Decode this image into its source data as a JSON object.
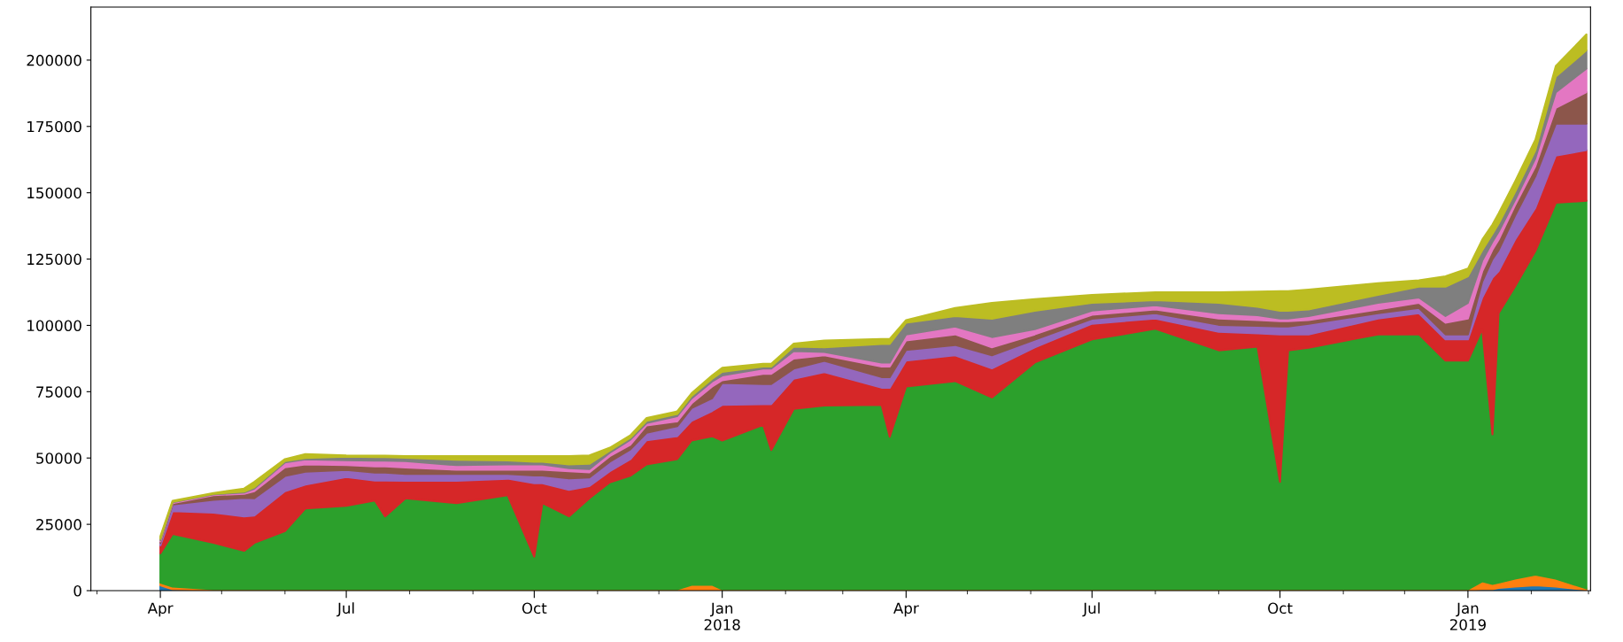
{
  "chart_data": {
    "type": "area",
    "stacked": true,
    "x": [
      "2017-04-01",
      "2017-04-07",
      "2017-04-27",
      "2017-05-12",
      "2017-05-17",
      "2017-06-01",
      "2017-06-11",
      "2017-07-01",
      "2017-07-15",
      "2017-07-20",
      "2017-07-30",
      "2017-08-24",
      "2017-09-18",
      "2017-10-01",
      "2017-10-05",
      "2017-10-18",
      "2017-10-28",
      "2017-11-07",
      "2017-11-17",
      "2017-11-25",
      "2017-12-10",
      "2017-12-17",
      "2017-12-27",
      "2018-01-01",
      "2018-01-21",
      "2018-01-25",
      "2018-02-05",
      "2018-02-20",
      "2018-03-20",
      "2018-03-24",
      "2018-04-01",
      "2018-04-25",
      "2018-05-13",
      "2018-06-03",
      "2018-07-01",
      "2018-08-01",
      "2018-09-01",
      "2018-09-20",
      "2018-10-01",
      "2018-10-05",
      "2018-10-15",
      "2018-11-18",
      "2018-12-08",
      "2018-12-21",
      "2019-01-01",
      "2019-01-08",
      "2019-01-13",
      "2019-01-16",
      "2019-01-24",
      "2019-02-03",
      "2019-02-13",
      "2019-02-28"
    ],
    "series": [
      {
        "color": "#1f77b4",
        "values": [
          2000,
          500,
          200,
          200,
          200,
          200,
          200,
          200,
          200,
          200,
          200,
          200,
          200,
          200,
          200,
          200,
          200,
          200,
          200,
          200,
          200,
          200,
          200,
          200,
          200,
          200,
          200,
          200,
          200,
          200,
          200,
          200,
          200,
          200,
          200,
          200,
          200,
          200,
          200,
          200,
          200,
          200,
          200,
          200,
          200,
          500,
          500,
          1000,
          1500,
          2000,
          1500,
          300
        ]
      },
      {
        "color": "#ff7f0e",
        "values": [
          1000,
          1000,
          300,
          300,
          300,
          300,
          300,
          300,
          300,
          300,
          300,
          300,
          300,
          300,
          300,
          300,
          300,
          300,
          300,
          300,
          300,
          2000,
          2000,
          300,
          300,
          300,
          300,
          300,
          300,
          300,
          300,
          300,
          300,
          300,
          300,
          300,
          300,
          300,
          300,
          300,
          300,
          300,
          300,
          300,
          300,
          3000,
          2000,
          2000,
          3000,
          4000,
          3000,
          500
        ]
      },
      {
        "color": "#2ca02c",
        "values": [
          11000,
          19900,
          17500,
          14500,
          17500,
          21900,
          30500,
          31500,
          33500,
          27500,
          34300,
          32500,
          35500,
          12300,
          32500,
          27500,
          34300,
          40300,
          42800,
          47100,
          49100,
          54400,
          56000,
          56100,
          62000,
          52500,
          68000,
          69300,
          69500,
          57500,
          76500,
          78500,
          72300,
          85500,
          94200,
          98200,
          90100,
          91500,
          40500,
          90100,
          91100,
          96100,
          96100,
          86200,
          86200,
          95200,
          56400,
          101600,
          110100,
          122000,
          141700,
          146200
        ]
      },
      {
        "color": "#d62728",
        "values": [
          3000,
          8600,
          11400,
          13000,
          10300,
          15100,
          9000,
          10800,
          7500,
          13500,
          6600,
          8400,
          6200,
          27700,
          7500,
          10000,
          4600,
          4200,
          6200,
          9100,
          8600,
          7400,
          9500,
          13400,
          7800,
          17300,
          11400,
          12600,
          6500,
          18500,
          9700,
          9700,
          11000,
          5700,
          5900,
          3900,
          7000,
          5000,
          55600,
          6000,
          5000,
          6000,
          8000,
          8000,
          8000,
          11800,
          59100,
          15800,
          17700,
          16300,
          17800,
          19100
        ]
      },
      {
        "color": "#9467bd",
        "values": [
          1000,
          2500,
          4800,
          7000,
          6500,
          5700,
          4800,
          2700,
          3000,
          3000,
          2600,
          2600,
          1800,
          2900,
          2900,
          4300,
          3300,
          3600,
          3700,
          2800,
          3800,
          4800,
          4800,
          8300,
          7600,
          7600,
          3800,
          4200,
          4000,
          4000,
          4000,
          3900,
          4900,
          2900,
          1900,
          2000,
          2600,
          2800,
          3000,
          3000,
          4000,
          2000,
          2000,
          1900,
          1900,
          6000,
          7000,
          7900,
          9000,
          11900,
          12000,
          9900
        ]
      },
      {
        "color": "#8c564b",
        "values": [
          500,
          500,
          1800,
          1500,
          2700,
          3300,
          2800,
          1800,
          2300,
          2300,
          2400,
          1600,
          1600,
          2200,
          2200,
          2700,
          1900,
          2100,
          1800,
          2800,
          1800,
          1800,
          4400,
          1000,
          3800,
          3800,
          3800,
          2100,
          4000,
          4000,
          3600,
          4000,
          3000,
          2000,
          1500,
          1400,
          2400,
          2200,
          2000,
          2000,
          1400,
          1400,
          1900,
          4400,
          6000,
          3900,
          3500,
          4000,
          3900,
          3800,
          6000,
          11900
        ]
      },
      {
        "color": "#e377c2",
        "values": [
          500,
          300,
          300,
          500,
          1000,
          1800,
          1900,
          1900,
          2200,
          2200,
          2400,
          1700,
          2000,
          2000,
          2000,
          1200,
          1200,
          1300,
          1900,
          900,
          2000,
          1900,
          1900,
          1800,
          2000,
          2000,
          2800,
          1300,
          1500,
          1500,
          2300,
          3000,
          3900,
          2000,
          1600,
          1600,
          2000,
          1800,
          1000,
          1000,
          1500,
          2500,
          2000,
          2500,
          5900,
          4000,
          3000,
          3000,
          2000,
          3000,
          5900,
          8900
        ]
      },
      {
        "color": "#7f7f7f",
        "values": [
          500,
          200,
          200,
          300,
          500,
          500,
          500,
          1300,
          1300,
          1300,
          1300,
          2000,
          1500,
          1000,
          1000,
          1400,
          2000,
          800,
          700,
          800,
          800,
          900,
          1000,
          1400,
          800,
          800,
          1700,
          1700,
          7000,
          7000,
          4400,
          3900,
          6900,
          6900,
          2900,
          1900,
          3900,
          3200,
          2900,
          2900,
          2500,
          3000,
          4100,
          11100,
          10000,
          3900,
          3000,
          3000,
          3000,
          3000,
          5900,
          6900
        ]
      },
      {
        "color": "#bcbd22",
        "values": [
          1000,
          400,
          300,
          1200,
          2000,
          800,
          1500,
          500,
          600,
          600,
          600,
          1400,
          1600,
          2100,
          2100,
          3100,
          3200,
          1100,
          900,
          1100,
          1000,
          1000,
          1300,
          1500,
          1000,
          1000,
          1100,
          2600,
          1900,
          1900,
          1000,
          3100,
          6000,
          4400,
          3000,
          3000,
          4000,
          5700,
          7400,
          7400,
          7500,
          4400,
          2400,
          3900,
          2900,
          4000,
          3500,
          3900,
          4000,
          4000,
          4000,
          6000
        ]
      }
    ],
    "xlim": [
      "2017-02-26",
      "2019-03-02"
    ],
    "xticks": [
      {
        "value": "2017-03-01",
        "label": null
      },
      {
        "value": "2017-04-01",
        "label": "Apr"
      },
      {
        "value": "2017-05-01",
        "label": null
      },
      {
        "value": "2017-06-01",
        "label": null
      },
      {
        "value": "2017-07-01",
        "label": "Jul"
      },
      {
        "value": "2017-08-01",
        "label": null
      },
      {
        "value": "2017-09-01",
        "label": null
      },
      {
        "value": "2017-10-01",
        "label": "Oct"
      },
      {
        "value": "2017-11-01",
        "label": null
      },
      {
        "value": "2017-12-01",
        "label": null
      },
      {
        "value": "2018-01-01",
        "label": "Jan\n2018"
      },
      {
        "value": "2018-02-01",
        "label": null
      },
      {
        "value": "2018-03-01",
        "label": null
      },
      {
        "value": "2018-04-01",
        "label": "Apr"
      },
      {
        "value": "2018-05-01",
        "label": null
      },
      {
        "value": "2018-06-01",
        "label": null
      },
      {
        "value": "2018-07-01",
        "label": "Jul"
      },
      {
        "value": "2018-08-01",
        "label": null
      },
      {
        "value": "2018-09-01",
        "label": null
      },
      {
        "value": "2018-10-01",
        "label": "Oct"
      },
      {
        "value": "2018-11-01",
        "label": null
      },
      {
        "value": "2018-12-01",
        "label": null
      },
      {
        "value": "2019-01-01",
        "label": "Jan\n2019"
      },
      {
        "value": "2019-02-01",
        "label": null
      },
      {
        "value": "2019-03-01",
        "label": null
      }
    ],
    "ylim": [
      0,
      220000
    ],
    "yticks": [
      0,
      25000,
      50000,
      75000,
      100000,
      125000,
      150000,
      175000,
      200000
    ],
    "grid": false,
    "legend": false
  }
}
